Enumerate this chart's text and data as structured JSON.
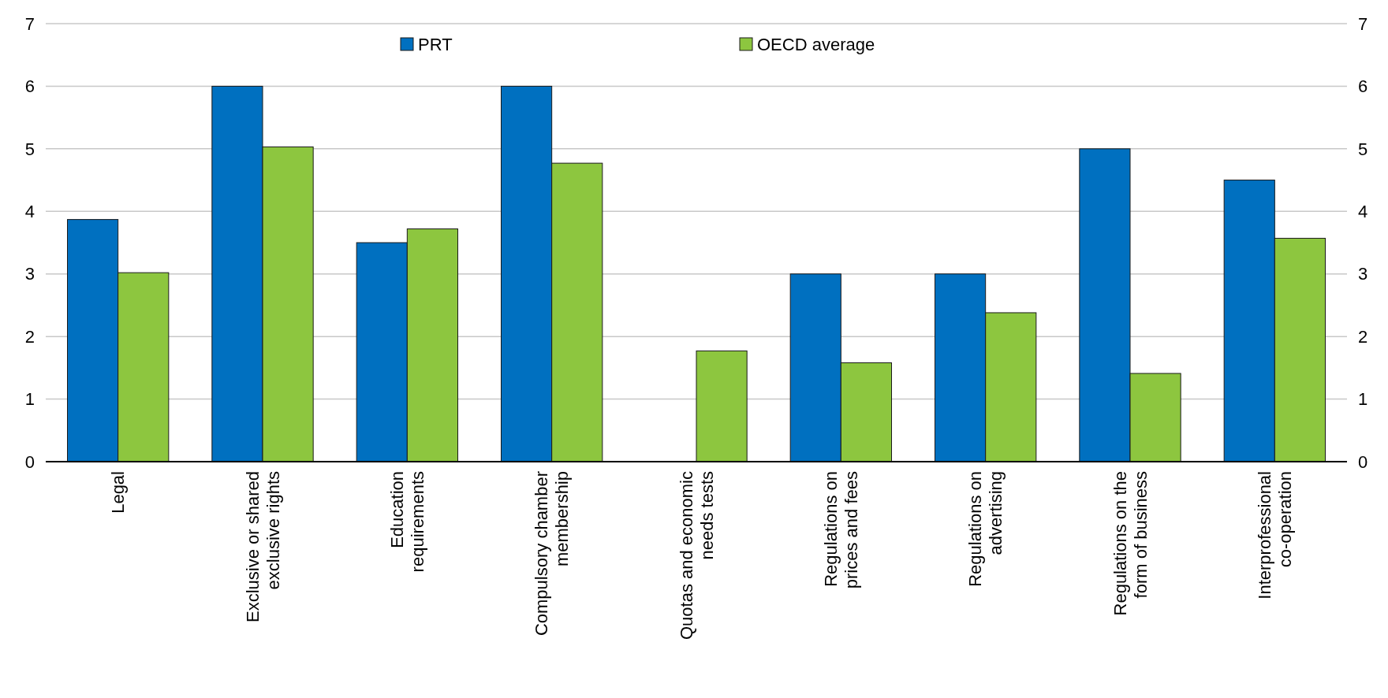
{
  "chart_data": {
    "type": "bar",
    "categories": [
      "Legal",
      "Exclusive or shared exclusive rights",
      "Education requirements",
      "Compulsory chamber membership",
      "Quotas and economic needs tests",
      "Regulations on prices and fees",
      "Regulations on advertising",
      "Regulations on the form of business",
      "Interprofessional co-operation"
    ],
    "series": [
      {
        "name": "PRT",
        "color": "#0070c0",
        "values": [
          3.87,
          6,
          3.5,
          6,
          0,
          3,
          3,
          5,
          4.5
        ]
      },
      {
        "name": "OECD average",
        "color": "#8dc63f",
        "values": [
          3.02,
          5.03,
          3.72,
          4.77,
          1.77,
          1.58,
          2.38,
          1.41,
          3.57
        ]
      }
    ],
    "ylim": [
      0,
      7
    ],
    "yticks": [
      0,
      1,
      2,
      3,
      4,
      5,
      6,
      7
    ],
    "y2lim": [
      0,
      7
    ],
    "y2ticks": [
      0,
      1,
      2,
      3,
      4,
      5,
      6,
      7
    ],
    "grid": "y",
    "legend": "top"
  }
}
